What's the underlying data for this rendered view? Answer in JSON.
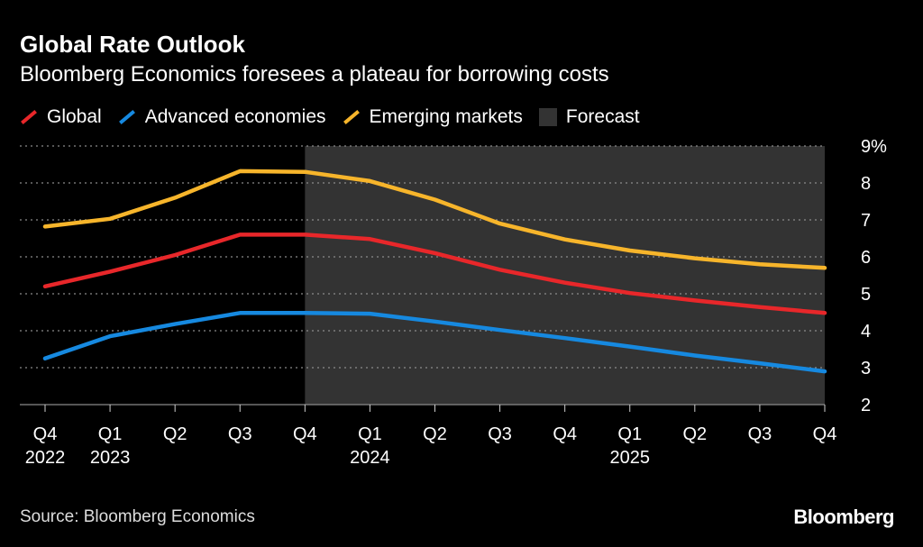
{
  "chart_data": {
    "type": "line",
    "title": "Global Rate Outlook",
    "subtitle": "Bloomberg Economics foresees a plateau for borrowing costs",
    "categories": [
      "Q4 2022",
      "Q1 2023",
      "Q2 2023",
      "Q3 2023",
      "Q4 2023",
      "Q1 2024",
      "Q2 2024",
      "Q3 2024",
      "Q4 2024",
      "Q1 2025",
      "Q2 2025",
      "Q3 2025",
      "Q4 2025"
    ],
    "x_tick_labels": [
      {
        "q": "Q4",
        "year": "2022"
      },
      {
        "q": "Q1",
        "year": "2023"
      },
      {
        "q": "Q2",
        "year": ""
      },
      {
        "q": "Q3",
        "year": ""
      },
      {
        "q": "Q4",
        "year": ""
      },
      {
        "q": "Q1",
        "year": "2024"
      },
      {
        "q": "Q2",
        "year": ""
      },
      {
        "q": "Q3",
        "year": ""
      },
      {
        "q": "Q4",
        "year": ""
      },
      {
        "q": "Q1",
        "year": "2025"
      },
      {
        "q": "Q2",
        "year": ""
      },
      {
        "q": "Q3",
        "year": ""
      },
      {
        "q": "Q4",
        "year": ""
      }
    ],
    "series": [
      {
        "name": "Global",
        "color": "#e8272a",
        "values": [
          5.2,
          5.6,
          6.05,
          6.6,
          6.6,
          6.48,
          6.1,
          5.65,
          5.3,
          5.02,
          4.82,
          4.64,
          4.48
        ]
      },
      {
        "name": "Advanced economies",
        "color": "#1689e0",
        "values": [
          3.25,
          3.85,
          4.18,
          4.48,
          4.48,
          4.46,
          4.25,
          4.02,
          3.8,
          3.57,
          3.33,
          3.12,
          2.9
        ]
      },
      {
        "name": "Emerging markets",
        "color": "#f7b52b",
        "values": [
          6.82,
          7.03,
          7.6,
          8.32,
          8.3,
          8.05,
          7.55,
          6.9,
          6.47,
          6.17,
          5.96,
          5.8,
          5.7
        ]
      }
    ],
    "forecast": {
      "label": "Forecast",
      "start_category": "Q4 2023",
      "end_category": "Q4 2025",
      "color": "#333333"
    },
    "ylim": [
      2,
      9
    ],
    "y_ticks": [
      2,
      3,
      4,
      5,
      6,
      7,
      8,
      9
    ],
    "y_tick_labels": [
      "2",
      "3",
      "4",
      "5",
      "6",
      "7",
      "8",
      "9%"
    ],
    "grid": true,
    "legend_position": "top-left",
    "source": "Source: Bloomberg Economics",
    "logo": "Bloomberg"
  }
}
